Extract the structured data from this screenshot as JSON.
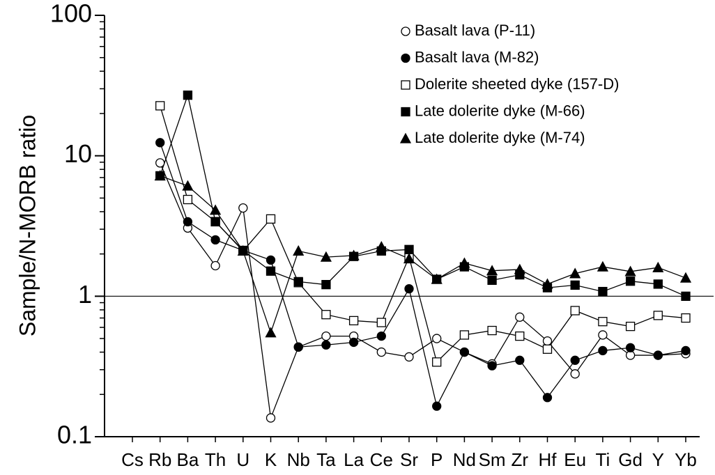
{
  "chart_data": {
    "type": "line",
    "y_label": "Sample/N-MORB ratio",
    "categories": [
      "Cs",
      "Rb",
      "Ba",
      "Th",
      "U",
      "K",
      "Nb",
      "Ta",
      "La",
      "Ce",
      "Sr",
      "P",
      "Nd",
      "Sm",
      "Zr",
      "Hf",
      "Eu",
      "Ti",
      "Gd",
      "Y",
      "Yb"
    ],
    "log_y": true,
    "ylim": [
      0.1,
      100
    ],
    "yticks": [
      0.1,
      1,
      10,
      100
    ],
    "hline": 1,
    "legend": "upper right",
    "series": [
      {
        "name": "Basalt lava (P-11)",
        "marker": "open-circle",
        "color": "#000000",
        "values": [
          null,
          8.9,
          3.06,
          1.65,
          4.25,
          0.136,
          0.435,
          0.52,
          0.52,
          0.4,
          0.37,
          0.5,
          0.4,
          0.33,
          0.71,
          0.48,
          0.28,
          0.53,
          0.38,
          0.38,
          0.39
        ]
      },
      {
        "name": "Basalt lava (M-82)",
        "marker": "filled-circle",
        "color": "#000000",
        "values": [
          null,
          12.4,
          3.39,
          2.52,
          2.12,
          1.81,
          0.435,
          0.45,
          0.47,
          0.52,
          1.13,
          0.165,
          0.4,
          0.32,
          0.35,
          0.19,
          0.35,
          0.41,
          0.43,
          0.38,
          0.41
        ]
      },
      {
        "name": "Dolerite sheeted dyke (157-D)",
        "marker": "open-square",
        "color": "#000000",
        "values": [
          null,
          22.7,
          4.88,
          3.4,
          2.1,
          3.55,
          1.25,
          0.74,
          0.67,
          0.65,
          1.9,
          0.34,
          0.53,
          0.57,
          0.52,
          0.42,
          0.79,
          0.66,
          0.61,
          0.73,
          0.7
        ]
      },
      {
        "name": "Late dolerite dyke (M-66)",
        "marker": "filled-square",
        "color": "#000000",
        "values": [
          null,
          7.2,
          27,
          3.39,
          2.12,
          1.51,
          1.27,
          1.21,
          1.92,
          2.1,
          2.15,
          1.32,
          1.62,
          1.3,
          1.42,
          1.15,
          1.2,
          1.08,
          1.28,
          1.22,
          1.0
        ]
      },
      {
        "name": "Late dolerite dyke (M-74)",
        "marker": "filled-triangle",
        "color": "#000000",
        "values": [
          null,
          7.2,
          6.1,
          4.1,
          2.1,
          0.55,
          2.1,
          1.9,
          1.95,
          2.25,
          1.85,
          1.32,
          1.72,
          1.52,
          1.55,
          1.22,
          1.45,
          1.62,
          1.5,
          1.6,
          1.35
        ]
      }
    ]
  }
}
